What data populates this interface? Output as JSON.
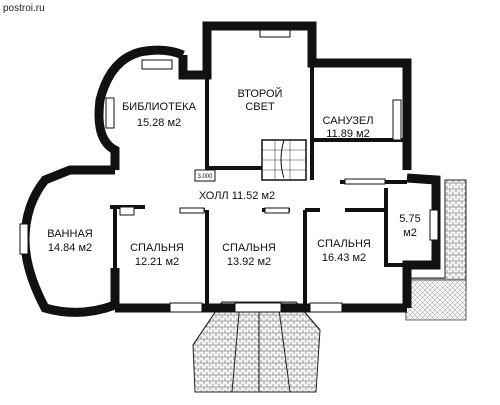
{
  "site_label": "postroi.ru",
  "elevation_mark": "3.000",
  "rooms": {
    "library": {
      "name": "БИБЛИОТЕКА",
      "area": "15.28 м2"
    },
    "second_light": {
      "name_line1": "ВТОРОЙ",
      "name_line2": "СВЕТ"
    },
    "bathroom_unit": {
      "name": "САНУЗЕЛ",
      "area": "11.89 м2"
    },
    "hall": {
      "label": "ХОЛЛ 11.52 м2"
    },
    "bath": {
      "name": "ВАННАЯ",
      "area": "14.84 м2"
    },
    "bedroom1": {
      "name": "СПАЛЬНЯ",
      "area": "12.21 м2"
    },
    "bedroom2": {
      "name": "СПАЛЬНЯ",
      "area": "13.92 м2"
    },
    "bedroom3": {
      "name": "СПАЛЬНЯ",
      "area": "16.43 м2"
    },
    "small_room": {
      "area_line1": "5.75",
      "area_line2": "м2"
    }
  }
}
